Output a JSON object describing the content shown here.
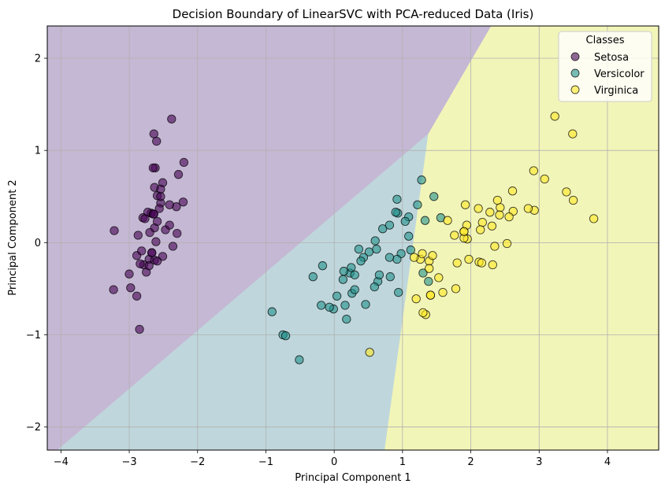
{
  "chart_data": {
    "type": "scatter",
    "title": "Decision Boundary of LinearSVC with PCA-reduced Data (Iris)",
    "xlabel": "Principal Component 1",
    "ylabel": "Principal Component 2",
    "xlim": [
      -4.2,
      4.75
    ],
    "ylim": [
      -2.25,
      2.35
    ],
    "xticks": [
      -4,
      -3,
      -2,
      -1,
      0,
      1,
      2,
      3,
      4
    ],
    "yticks": [
      -2,
      -1,
      0,
      1,
      2
    ],
    "xtick_labels": [
      "−4",
      "−3",
      "−2",
      "−1",
      "0",
      "1",
      "2",
      "3",
      "4"
    ],
    "ytick_labels": [
      "−2",
      "−1",
      "0",
      "1",
      "2"
    ],
    "grid": true,
    "legend": {
      "title": "Classes",
      "placement": "top-right",
      "entries": [
        "Setosa",
        "Versicolor",
        "Virginica"
      ]
    },
    "regions": [
      {
        "class": "Setosa",
        "color": "#c5b8d4",
        "polygon": [
          [
            -4.2,
            -2.25
          ],
          [
            -4.05,
            -2.25
          ],
          [
            1.38,
            1.18
          ],
          [
            2.3,
            2.35
          ],
          [
            -4.2,
            2.35
          ]
        ]
      },
      {
        "class": "Versicolor",
        "color": "#bfd7dc",
        "polygon": [
          [
            -4.05,
            -2.25
          ],
          [
            0.74,
            -2.25
          ],
          [
            1.38,
            1.18
          ]
        ]
      },
      {
        "class": "Virginica",
        "color": "#f2f5b8",
        "polygon": [
          [
            0.74,
            -2.25
          ],
          [
            4.75,
            -2.25
          ],
          [
            4.75,
            2.35
          ],
          [
            2.3,
            2.35
          ],
          [
            1.38,
            1.18
          ]
        ]
      }
    ],
    "series": [
      {
        "name": "Setosa",
        "color": "#440154",
        "points": [
          [
            -2.68,
            0.32
          ],
          [
            -2.71,
            -0.18
          ],
          [
            -2.89,
            -0.14
          ],
          [
            -2.75,
            -0.32
          ],
          [
            -2.73,
            0.33
          ],
          [
            -2.28,
            0.74
          ],
          [
            -2.82,
            -0.09
          ],
          [
            -2.63,
            0.16
          ],
          [
            -2.89,
            -0.58
          ],
          [
            -2.67,
            -0.11
          ],
          [
            -2.51,
            0.65
          ],
          [
            -2.61,
            0.01
          ],
          [
            -2.79,
            -0.24
          ],
          [
            -3.23,
            -0.51
          ],
          [
            -2.64,
            1.18
          ],
          [
            -2.38,
            1.34
          ],
          [
            -2.62,
            0.81
          ],
          [
            -2.65,
            0.31
          ],
          [
            -2.2,
            0.87
          ],
          [
            -2.59,
            0.51
          ],
          [
            -2.31,
            0.39
          ],
          [
            -2.54,
            0.43
          ],
          [
            -3.22,
            0.13
          ],
          [
            -2.3,
            0.1
          ],
          [
            -2.36,
            -0.04
          ],
          [
            -2.51,
            -0.15
          ],
          [
            -2.47,
            0.14
          ],
          [
            -2.56,
            0.37
          ],
          [
            -2.64,
            0.31
          ],
          [
            -2.63,
            -0.19
          ],
          [
            -2.59,
            -0.2
          ],
          [
            -2.41,
            0.41
          ],
          [
            -2.65,
            0.81
          ],
          [
            -2.6,
            1.1
          ],
          [
            -2.67,
            -0.11
          ],
          [
            -2.87,
            0.08
          ],
          [
            -2.63,
            0.6
          ],
          [
            -2.8,
            0.27
          ],
          [
            -2.98,
            -0.49
          ],
          [
            -2.59,
            0.23
          ],
          [
            -2.77,
            0.26
          ],
          [
            -2.85,
            -0.94
          ],
          [
            -3.0,
            -0.34
          ],
          [
            -2.41,
            0.19
          ],
          [
            -2.21,
            0.44
          ],
          [
            -2.71,
            -0.25
          ],
          [
            -2.54,
            0.5
          ],
          [
            -2.84,
            -0.23
          ],
          [
            -2.54,
            0.58
          ],
          [
            -2.7,
            0.11
          ]
        ]
      },
      {
        "name": "Versicolor",
        "color": "#21918c",
        "points": [
          [
            1.28,
            0.68
          ],
          [
            0.93,
            0.32
          ],
          [
            1.46,
            0.5
          ],
          [
            0.18,
            -0.83
          ],
          [
            1.09,
            0.07
          ],
          [
            0.64,
            -0.42
          ],
          [
            1.09,
            0.28
          ],
          [
            -0.75,
            -1.0
          ],
          [
            1.04,
            0.23
          ],
          [
            -0.01,
            -0.72
          ],
          [
            -0.51,
            -1.27
          ],
          [
            0.51,
            -0.1
          ],
          [
            0.26,
            -0.55
          ],
          [
            0.98,
            -0.12
          ],
          [
            -0.17,
            -0.25
          ],
          [
            0.92,
            0.47
          ],
          [
            0.66,
            -0.35
          ],
          [
            0.23,
            -0.33
          ],
          [
            0.94,
            -0.54
          ],
          [
            0.04,
            -0.58
          ],
          [
            1.12,
            -0.08
          ],
          [
            0.36,
            -0.07
          ],
          [
            1.3,
            -0.33
          ],
          [
            0.92,
            -0.18
          ],
          [
            0.71,
            0.15
          ],
          [
            0.9,
            0.33
          ],
          [
            1.33,
            0.24
          ],
          [
            1.56,
            0.27
          ],
          [
            0.81,
            -0.16
          ],
          [
            -0.31,
            -0.37
          ],
          [
            -0.07,
            -0.7
          ],
          [
            -0.19,
            -0.68
          ],
          [
            0.14,
            -0.31
          ],
          [
            1.38,
            -0.42
          ],
          [
            0.59,
            -0.48
          ],
          [
            0.81,
            0.19
          ],
          [
            1.22,
            0.41
          ],
          [
            0.82,
            -0.37
          ],
          [
            0.25,
            -0.27
          ],
          [
            0.16,
            -0.68
          ],
          [
            0.46,
            -0.67
          ],
          [
            0.6,
            0.02
          ],
          [
            0.13,
            -0.4
          ],
          [
            -0.71,
            -1.01
          ],
          [
            0.3,
            -0.51
          ],
          [
            0.43,
            -0.16
          ],
          [
            0.39,
            -0.2
          ],
          [
            0.62,
            -0.07
          ],
          [
            -0.91,
            -0.75
          ],
          [
            0.3,
            -0.35
          ]
        ]
      },
      {
        "name": "Virginica",
        "color": "#fde725",
        "points": [
          [
            2.53,
            -0.01
          ],
          [
            1.41,
            -0.57
          ],
          [
            2.62,
            0.34
          ],
          [
            1.97,
            -0.18
          ],
          [
            2.35,
            -0.04
          ],
          [
            3.4,
            0.55
          ],
          [
            0.52,
            -1.19
          ],
          [
            2.93,
            0.35
          ],
          [
            2.32,
            -0.24
          ],
          [
            2.92,
            0.78
          ],
          [
            1.66,
            0.24
          ],
          [
            1.8,
            -0.22
          ],
          [
            2.17,
            0.22
          ],
          [
            1.34,
            -0.78
          ],
          [
            1.59,
            -0.54
          ],
          [
            1.9,
            0.12
          ],
          [
            1.95,
            0.04
          ],
          [
            3.49,
            1.18
          ],
          [
            3.8,
            0.26
          ],
          [
            1.3,
            -0.76
          ],
          [
            2.43,
            0.38
          ],
          [
            1.2,
            -0.61
          ],
          [
            3.5,
            0.46
          ],
          [
            1.39,
            -0.2
          ],
          [
            2.28,
            0.33
          ],
          [
            2.61,
            0.56
          ],
          [
            1.26,
            -0.18
          ],
          [
            1.29,
            -0.12
          ],
          [
            2.12,
            -0.21
          ],
          [
            2.39,
            0.46
          ],
          [
            2.84,
            0.37
          ],
          [
            3.23,
            1.37
          ],
          [
            2.16,
            -0.22
          ],
          [
            1.44,
            -0.14
          ],
          [
            1.78,
            -0.5
          ],
          [
            3.08,
            0.69
          ],
          [
            2.14,
            0.14
          ],
          [
            1.9,
            0.05
          ],
          [
            1.17,
            -0.16
          ],
          [
            2.11,
            0.37
          ],
          [
            2.31,
            0.18
          ],
          [
            1.92,
            0.41
          ],
          [
            1.41,
            -0.57
          ],
          [
            2.56,
            0.28
          ],
          [
            2.42,
            0.3
          ],
          [
            1.94,
            0.19
          ],
          [
            1.53,
            -0.38
          ],
          [
            1.76,
            0.08
          ],
          [
            1.9,
            0.12
          ],
          [
            1.39,
            -0.28
          ]
        ]
      }
    ]
  }
}
